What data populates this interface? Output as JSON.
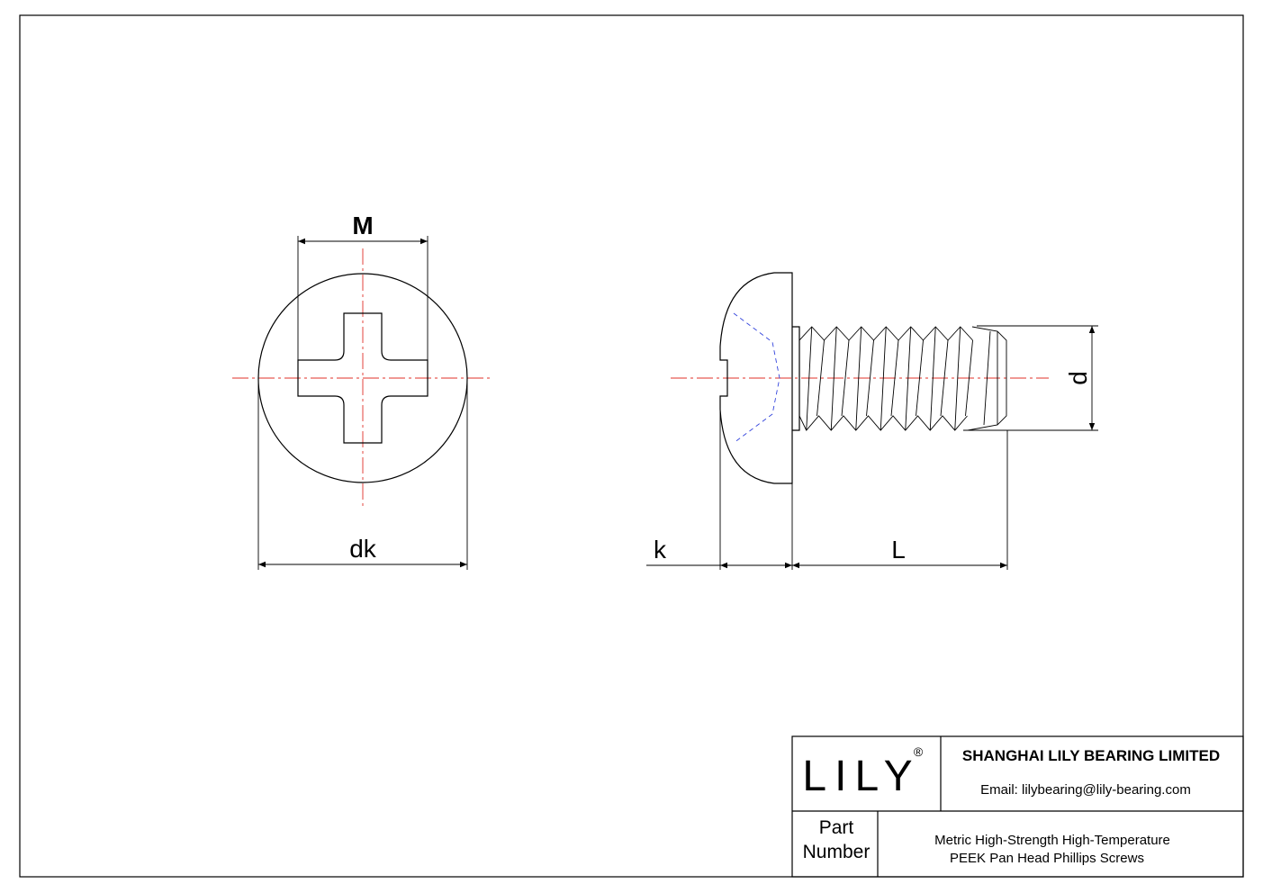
{
  "drawing": {
    "dimensions": {
      "M": "M",
      "dk": "dk",
      "k": "k",
      "L": "L",
      "d": "d"
    }
  },
  "title_block": {
    "logo": "LILY",
    "registered": "®",
    "company": "SHANGHAI LILY BEARING LIMITED",
    "email": "Email: lilybearing@lily-bearing.com",
    "part_number_label": [
      "Part",
      "Number"
    ],
    "description": [
      "Metric High-Strength High-Temperature",
      "PEEK Pan Head Phillips Screws"
    ]
  }
}
